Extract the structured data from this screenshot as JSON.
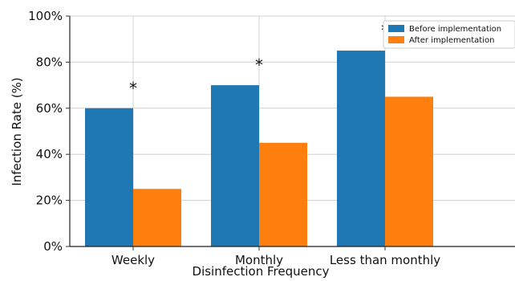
{
  "chart_data": {
    "type": "bar",
    "title": "",
    "xlabel": "Disinfection Frequency",
    "ylabel": "Infection Rate (%)",
    "categories": [
      "Weekly",
      "Monthly",
      "Less than monthly"
    ],
    "series": [
      {
        "name": "Before implementation",
        "values": [
          60,
          70,
          85
        ],
        "color": "#1f77b4"
      },
      {
        "name": "After implementation",
        "values": [
          25,
          45,
          65
        ],
        "color": "#ff7f0e"
      }
    ],
    "ylim": [
      0,
      100
    ],
    "yticks": [
      "0%",
      "20%",
      "40%",
      "60%",
      "80%",
      "100%"
    ],
    "grid": true,
    "legend_position": "top-right",
    "annotations": [
      "*",
      "*",
      "*"
    ]
  }
}
